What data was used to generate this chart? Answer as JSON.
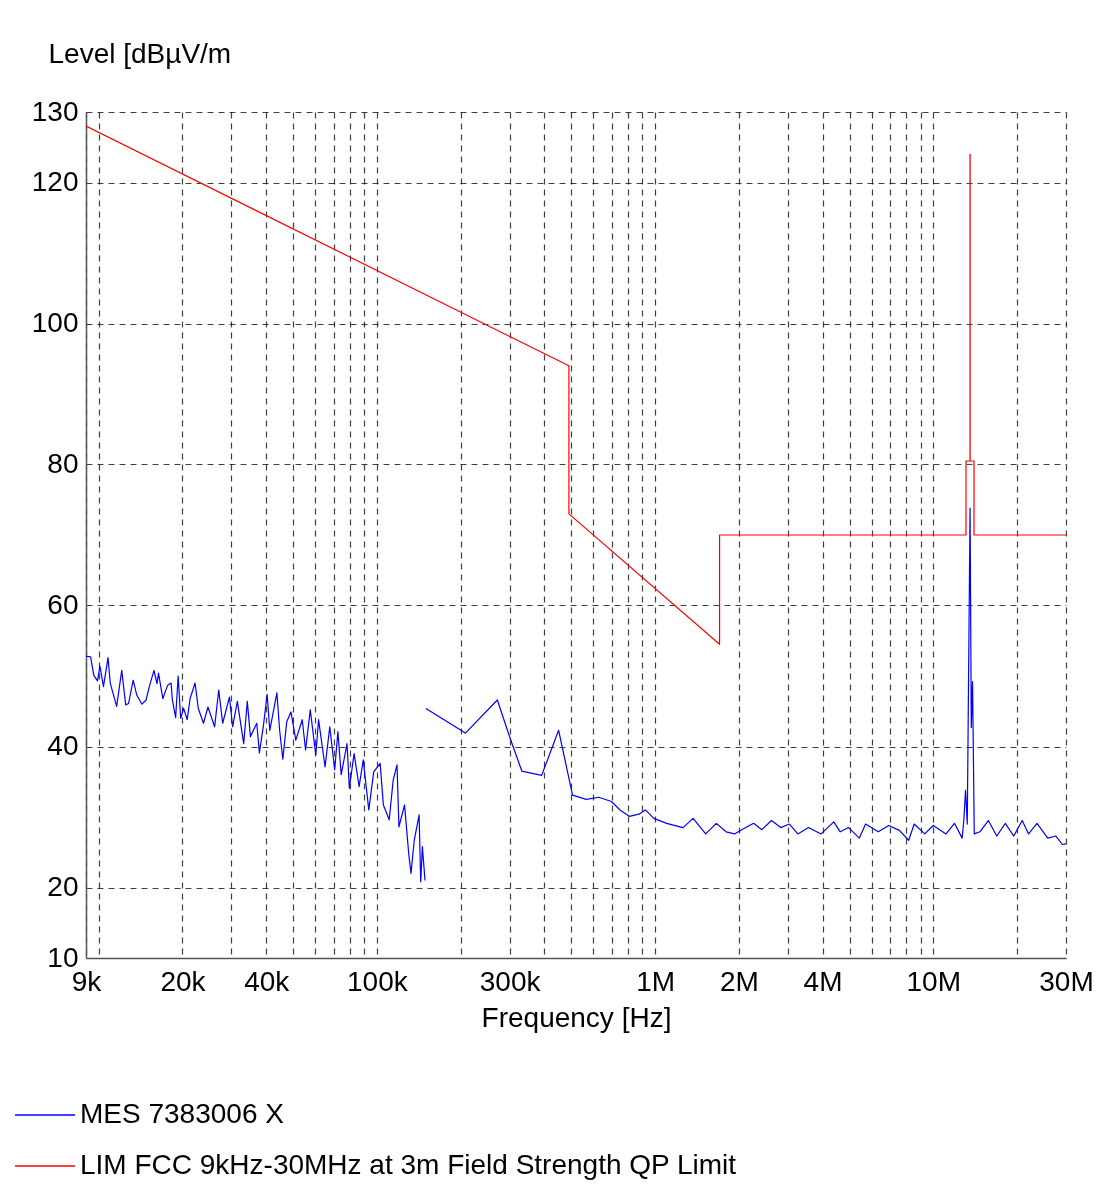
{
  "chart_data": {
    "type": "line",
    "xlabel": "Frequency [Hz]",
    "ylabel": "Level [dBµV/m",
    "log": "x",
    "grid": true,
    "legend": "bottom left",
    "xlim": [
      9000,
      30000000
    ],
    "ylim": [
      10,
      130
    ],
    "xticks": [
      {
        "value": 9000,
        "label": "9k"
      },
      {
        "value": 10000,
        "label": null
      },
      {
        "value": 20000,
        "label": "20k"
      },
      {
        "value": 30000,
        "label": null
      },
      {
        "value": 40000,
        "label": "40k"
      },
      {
        "value": 50000,
        "label": null
      },
      {
        "value": 60000,
        "label": null
      },
      {
        "value": 70000,
        "label": null
      },
      {
        "value": 80000,
        "label": null
      },
      {
        "value": 90000,
        "label": null
      },
      {
        "value": 100000,
        "label": "100k"
      },
      {
        "value": 200000,
        "label": null
      },
      {
        "value": 300000,
        "label": "300k"
      },
      {
        "value": 400000,
        "label": null
      },
      {
        "value": 500000,
        "label": null
      },
      {
        "value": 600000,
        "label": null
      },
      {
        "value": 700000,
        "label": null
      },
      {
        "value": 800000,
        "label": null
      },
      {
        "value": 900000,
        "label": null
      },
      {
        "value": 1000000,
        "label": "1M"
      },
      {
        "value": 2000000,
        "label": "2M"
      },
      {
        "value": 3000000,
        "label": null
      },
      {
        "value": 4000000,
        "label": "4M"
      },
      {
        "value": 5000000,
        "label": null
      },
      {
        "value": 6000000,
        "label": null
      },
      {
        "value": 7000000,
        "label": null
      },
      {
        "value": 8000000,
        "label": null
      },
      {
        "value": 9000000,
        "label": null
      },
      {
        "value": 10000000,
        "label": "10M"
      },
      {
        "value": 20000000,
        "label": null
      },
      {
        "value": 30000000,
        "label": "30M"
      }
    ],
    "yticks": [
      10,
      20,
      40,
      60,
      80,
      100,
      120,
      130
    ],
    "series": [
      {
        "name": "MES  7383006 X",
        "color": "#0000ff",
        "x": [
          9000,
          9350,
          9600,
          9900,
          10100,
          10400,
          10800,
          11000,
          11600,
          12100,
          12500,
          12800,
          13300,
          13700,
          14300,
          14800,
          15200,
          15800,
          16200,
          16400,
          17000,
          17700,
          18200,
          18400,
          18900,
          19300,
          19700,
          20200,
          20800,
          21300,
          22200,
          22800,
          23800,
          24700,
          26100,
          27000,
          27900,
          29500,
          30300,
          31500,
          33200,
          34200,
          35100,
          37000,
          37800,
          39100,
          40300,
          41200,
          43700,
          44700,
          45900,
          47400,
          49100,
          51100,
          53900,
          55400,
          57600,
          60300,
          61700,
          65100,
          67700,
          70500,
          72400,
          74400,
          78100,
          79600,
          82800,
          86300,
          89300,
          93500,
          97400,
          102700,
          105500,
          110700,
          114400,
          118100,
          120000,
          125700,
          130100,
          132600,
          136200,
          141800,
          143700,
          145700,
          148900,
          149500,
          150000,
          208000,
          271000,
          301000,
          332000,
          391000,
          450000,
          505000,
          565000,
          627000,
          697000,
          748000,
          808000,
          875000,
          923000,
          990000,
          1100000,
          1260000,
          1370000,
          1520000,
          1660000,
          1800000,
          1930000,
          2070000,
          2260000,
          2420000,
          2620000,
          2830000,
          3040000,
          3260000,
          3560000,
          3950000,
          4390000,
          4630000,
          4960000,
          5420000,
          5710000,
          6340000,
          6920000,
          7550000,
          8160000,
          8540000,
          9320000,
          10000000,
          11110000,
          11920000,
          12700000,
          12870000,
          13060000,
          13250000,
          13560000,
          13700000,
          13840000,
          14040000,
          14710000,
          15770000,
          16920000,
          18150000,
          19460000,
          20880000,
          22000000,
          23600000,
          25800000,
          27600000,
          29100000,
          30000000
        ],
        "values": [
          52.8,
          52.7,
          50.1,
          49.3,
          51.4,
          48.5,
          52.6,
          49.0,
          45.7,
          50.8,
          45.9,
          46.1,
          49.4,
          47.3,
          46.0,
          46.6,
          48.5,
          50.8,
          48.9,
          50.4,
          46.8,
          48.7,
          49.0,
          46.6,
          44.1,
          50.0,
          44.0,
          45.4,
          43.8,
          46.8,
          49.0,
          45.4,
          43.3,
          45.6,
          42.8,
          48.0,
          43.3,
          47.0,
          42.8,
          46.4,
          40.4,
          46.4,
          41.4,
          43.3,
          39.1,
          43.0,
          47.4,
          42.3,
          47.6,
          42.3,
          38.2,
          43.5,
          44.9,
          40.9,
          43.8,
          39.5,
          45.2,
          38.8,
          43.8,
          37.1,
          42.8,
          36.7,
          42.1,
          36.0,
          40.4,
          34.1,
          39.0,
          34.3,
          38.1,
          31.0,
          36.4,
          37.6,
          31.7,
          29.6,
          35.2,
          37.4,
          28.6,
          31.7,
          24.8,
          22.0,
          26.7,
          30.3,
          20.8,
          25.8,
          21.0,
          null,
          45.4,
          41.9,
          46.6,
          41.2,
          36.5,
          35.9,
          42.3,
          33.1,
          32.5,
          32.8,
          32.2,
          31.0,
          30.1,
          30.4,
          31.0,
          29.8,
          29.1,
          28.5,
          29.8,
          27.6,
          29.1,
          27.9,
          27.6,
          28.3,
          29.1,
          28.2,
          29.5,
          28.5,
          29.0,
          27.6,
          28.5,
          27.6,
          29.3,
          27.9,
          28.5,
          27.0,
          29.0,
          27.9,
          28.8,
          28.1,
          26.7,
          29.0,
          27.6,
          28.8,
          27.6,
          29.1,
          27.0,
          29.4,
          33.8,
          29.0,
          73.8,
          42.7,
          49.2,
          27.6,
          27.9,
          29.5,
          27.3,
          29.1,
          27.3,
          29.5,
          27.6,
          29.1,
          27.0,
          27.3,
          26.1,
          26.2
        ]
      },
      {
        "name": "LIM  FCC 9kHz-30MHz at 3m  Field Strength QP Limit",
        "color": "#ff0000",
        "x": [
          9000,
          490000,
          490000,
          1705000,
          1705000,
          13110000,
          13110000,
          13553000,
          13553000,
          13567000,
          13567000,
          14010000,
          14010000,
          30000000
        ],
        "values": [
          128,
          94,
          73,
          54.5,
          70,
          70,
          80.5,
          80.5,
          124,
          124,
          80.5,
          80.5,
          70,
          70
        ]
      }
    ]
  }
}
